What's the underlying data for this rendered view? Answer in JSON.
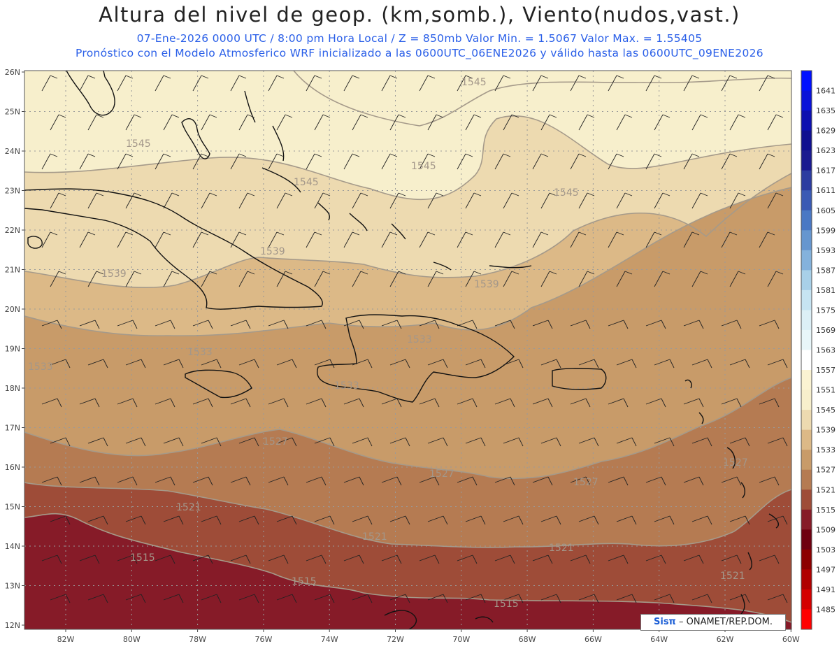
{
  "header": {
    "title": "Altura del nivel de geop. (km,somb.), Viento(nudos,vast.)",
    "line1": "07-Ene-2026  0000 UTC / 8:00 pm Hora Local / Z = 850mb     Valor Min. = 1.5067  Valor Max. = 1.55405",
    "line2": "Pronóstico con el Modelo Atmosferico WRF inicializado a las 0600UTC_06ENE2026 y válido hasta las  0600UTC_09ENE2026"
  },
  "map": {
    "lat_labels": [
      "26N",
      "25N",
      "24N",
      "23N",
      "22N",
      "21N",
      "20N",
      "19N",
      "18N",
      "17N",
      "16N",
      "15N",
      "14N",
      "13N",
      "12N"
    ],
    "lon_labels": [
      "82W",
      "80W",
      "78W",
      "76W",
      "74W",
      "72W",
      "70W",
      "68W",
      "66W",
      "64W",
      "62W",
      "60W"
    ],
    "contour_labels": [
      "1545",
      "1545",
      "1545",
      "1545",
      "1545",
      "1539",
      "1539",
      "1539",
      "1533",
      "1533",
      "1533",
      "1533",
      "1527",
      "1527",
      "1527",
      "1527",
      "1521",
      "1521",
      "1521",
      "1521",
      "1515",
      "1515",
      "1515",
      "1521"
    ],
    "fill_colors": {
      "1545": "#f7efcc",
      "1539": "#eddab0",
      "1533": "#dcb987",
      "1527": "#c89b69",
      "1521": "#b57b52",
      "1515": "#9e4c38",
      "1509": "#861b28"
    }
  },
  "colorbar": {
    "labels": [
      "1641",
      "1635",
      "1629",
      "1623",
      "1617",
      "1611",
      "1605",
      "1599",
      "1593",
      "1587",
      "1581",
      "1575",
      "1569",
      "1563",
      "1557",
      "1551",
      "1545",
      "1539",
      "1533",
      "1527",
      "1521",
      "1515",
      "1509",
      "1503",
      "1497",
      "1491",
      "1485"
    ],
    "colors": [
      "#0010ff",
      "#0a12d8",
      "#0d10b0",
      "#101090",
      "#1a1a90",
      "#2c3ca0",
      "#3a5ab4",
      "#4a78c4",
      "#6696cf",
      "#84b2dc",
      "#a8d0e8",
      "#c6e4f2",
      "#dceff6",
      "#e8f6f9",
      "#ffffff",
      "#fbf3d2",
      "#f7efcc",
      "#eddab0",
      "#dcb987",
      "#c89b69",
      "#b57b52",
      "#9e4c38",
      "#861b28",
      "#6e0010",
      "#8c0000",
      "#b00000",
      "#d40000",
      "#ff0000"
    ]
  },
  "credit": {
    "logo": "Sisπ",
    "text": " – ONAMET/REP.DOM."
  }
}
